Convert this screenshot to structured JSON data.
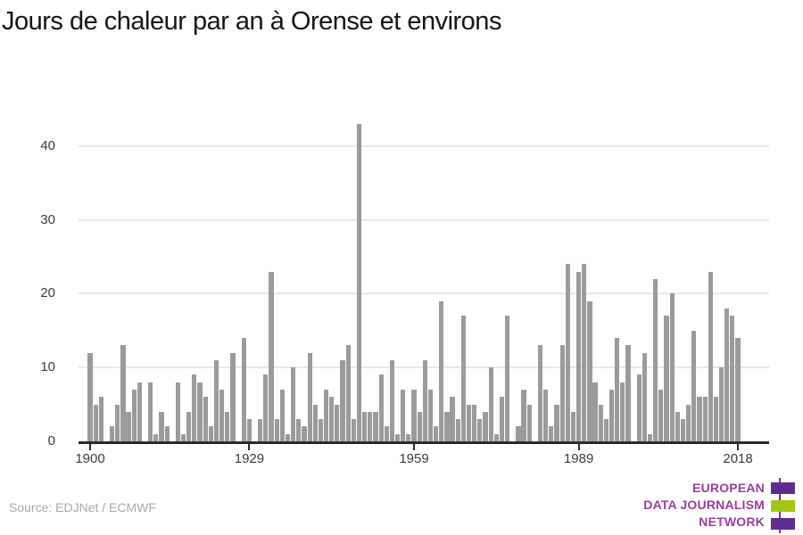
{
  "title": "Jours de chaleur par an à Orense et environs",
  "source": {
    "label": "Source: EDJNet / ECMWF"
  },
  "logo": {
    "lines": [
      "EUROPEAN",
      "DATA JOURNALISM",
      "NETWORK"
    ],
    "text_color": "#9a3da2",
    "block_colors": [
      "#5f2b8e",
      "#a1c617",
      "#5f2b8e"
    ],
    "vline_color": "#7a2f94"
  },
  "chart_data": {
    "type": "bar",
    "title": "Jours de chaleur par an à Orense et environs",
    "xlabel": "",
    "ylabel": "",
    "x_start": 1900,
    "x_end": 2018,
    "x_ticks": [
      1900,
      1929,
      1959,
      1989,
      2018
    ],
    "y_ticks": [
      0,
      10,
      20,
      30,
      40
    ],
    "ylim": [
      0,
      45
    ],
    "grid": true,
    "legend": false,
    "bar_color": "#9b9b9b",
    "gridline_color": "#e9e9e9",
    "axis_color": "#2b2b2b",
    "values": [
      12,
      5,
      6,
      0,
      2,
      5,
      13,
      4,
      7,
      8,
      0,
      8,
      1,
      4,
      2,
      0,
      8,
      1,
      4,
      9,
      8,
      6,
      2,
      11,
      7,
      4,
      12,
      0,
      14,
      3,
      0,
      3,
      9,
      23,
      3,
      7,
      1,
      10,
      3,
      2,
      12,
      5,
      3,
      7,
      6,
      5,
      11,
      13,
      3,
      43,
      4,
      4,
      4,
      9,
      2,
      11,
      1,
      7,
      1,
      7,
      4,
      11,
      7,
      2,
      19,
      4,
      6,
      3,
      17,
      5,
      5,
      3,
      4,
      10,
      1,
      6,
      17,
      0,
      2,
      7,
      5,
      0,
      13,
      7,
      2,
      5,
      13,
      24,
      4,
      23,
      24,
      19,
      8,
      5,
      3,
      7,
      14,
      8,
      13,
      0,
      9,
      12,
      1,
      22,
      7,
      17,
      20,
      4,
      3,
      5,
      15,
      6,
      6,
      23,
      6,
      10,
      18,
      17,
      14
    ]
  }
}
